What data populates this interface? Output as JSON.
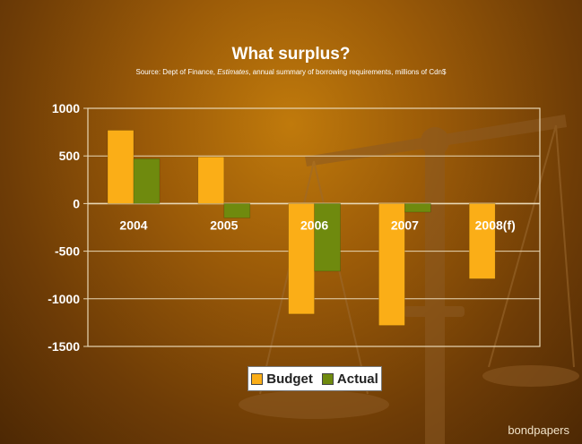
{
  "slide": {
    "title": "What surplus?",
    "source_prefix": "Source:  Dept of Finance, ",
    "source_italic": "Estimates",
    "source_suffix": ", annual summary of borrowing requirements, millions of Cdn$",
    "credit": "bondpapers"
  },
  "colors": {
    "budget": "#fbae17",
    "actual": "#6f8a0e",
    "grid": "#e8d7b5"
  },
  "chart_data": {
    "type": "bar",
    "title": "What surplus?",
    "categories": [
      "2004",
      "2005",
      "2006",
      "2007",
      "2008(f)"
    ],
    "series": [
      {
        "name": "Budget",
        "values": [
          770,
          490,
          -1160,
          -1280,
          -790
        ]
      },
      {
        "name": "Actual",
        "values": [
          470,
          -150,
          -710,
          -90,
          null
        ]
      }
    ],
    "ylim": [
      -1500,
      1000
    ],
    "yticks": [
      "1000",
      "500",
      "0",
      "-500",
      "-1000",
      "-1500"
    ],
    "ytick_values": [
      1000,
      500,
      0,
      -500,
      -1000,
      -1500
    ],
    "grid": true,
    "legend": "bottom"
  }
}
